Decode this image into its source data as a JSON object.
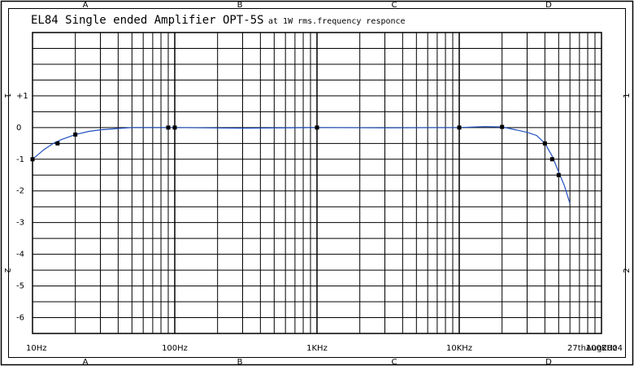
{
  "chart_data": {
    "type": "line",
    "title": "EL84 Single ended Amplifier OPT-5S",
    "subtitle": "at 1W rms.frequency responce",
    "date": "27thAug2004",
    "x_scale": "log",
    "xlim": [
      10,
      100000
    ],
    "ylim": [
      -6.5,
      3
    ],
    "x_ticks": [
      {
        "value": 10,
        "label": "10Hz"
      },
      {
        "value": 100,
        "label": "100Hz"
      },
      {
        "value": 1000,
        "label": "1KHz"
      },
      {
        "value": 10000,
        "label": "10KHz"
      },
      {
        "value": 100000,
        "label": "100KHz"
      }
    ],
    "y_ticks": [
      {
        "value": 1,
        "label": "+1"
      },
      {
        "value": 0,
        "label": "0"
      },
      {
        "value": -1,
        "label": "-1"
      },
      {
        "value": -2,
        "label": "-2"
      },
      {
        "value": -3,
        "label": "-3"
      },
      {
        "value": -4,
        "label": "-4"
      },
      {
        "value": -5,
        "label": "-5"
      },
      {
        "value": -6,
        "label": "-6"
      }
    ],
    "frame_zone_labels": {
      "columns": [
        "A",
        "B",
        "C",
        "D"
      ],
      "rows": [
        "1",
        "2"
      ]
    },
    "grid": true,
    "line_color": "#1f4fbf",
    "marker_color": "#000000",
    "series": [
      {
        "curve": [
          {
            "x": 10,
            "y": -1.0
          },
          {
            "x": 12,
            "y": -0.7
          },
          {
            "x": 14,
            "y": -0.5
          },
          {
            "x": 16,
            "y": -0.38
          },
          {
            "x": 20,
            "y": -0.22
          },
          {
            "x": 25,
            "y": -0.12
          },
          {
            "x": 30,
            "y": -0.07
          },
          {
            "x": 40,
            "y": -0.03
          },
          {
            "x": 50,
            "y": 0
          },
          {
            "x": 80,
            "y": 0
          },
          {
            "x": 100,
            "y": 0
          },
          {
            "x": 300,
            "y": -0.02
          },
          {
            "x": 1000,
            "y": 0
          },
          {
            "x": 3000,
            "y": -0.01
          },
          {
            "x": 10000,
            "y": 0
          },
          {
            "x": 15000,
            "y": 0.03
          },
          {
            "x": 20000,
            "y": 0.02
          },
          {
            "x": 25000,
            "y": -0.07
          },
          {
            "x": 30000,
            "y": -0.15
          },
          {
            "x": 35000,
            "y": -0.25
          },
          {
            "x": 40000,
            "y": -0.5
          },
          {
            "x": 45000,
            "y": -0.9
          },
          {
            "x": 50000,
            "y": -1.4
          },
          {
            "x": 55000,
            "y": -1.85
          },
          {
            "x": 60000,
            "y": -2.4
          }
        ],
        "markers": [
          {
            "x": 10,
            "y": -1.0
          },
          {
            "x": 15,
            "y": -0.5
          },
          {
            "x": 20,
            "y": -0.22
          },
          {
            "x": 90,
            "y": 0
          },
          {
            "x": 100,
            "y": 0
          },
          {
            "x": 1000,
            "y": 0
          },
          {
            "x": 10000,
            "y": 0
          },
          {
            "x": 20000,
            "y": 0.02
          },
          {
            "x": 40000,
            "y": -0.5
          },
          {
            "x": 45000,
            "y": -1.0
          },
          {
            "x": 50000,
            "y": -1.5
          }
        ]
      }
    ]
  }
}
